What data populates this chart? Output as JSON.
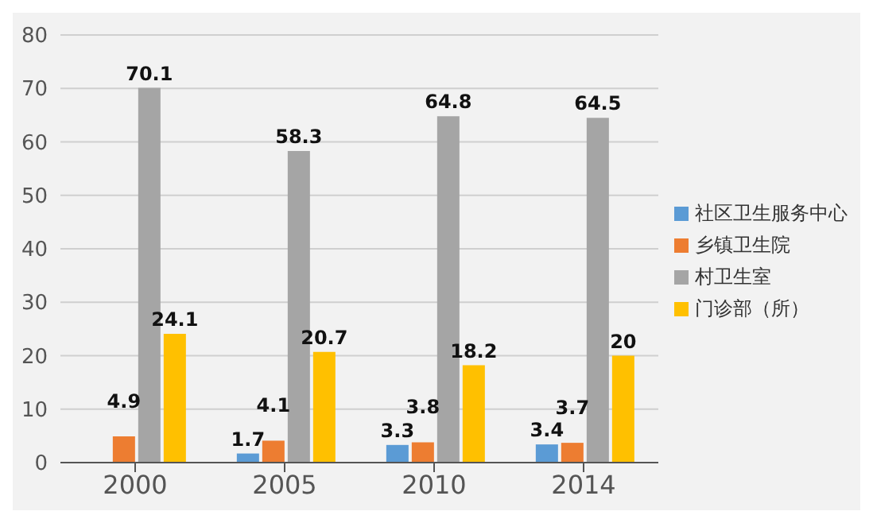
{
  "chart_data": {
    "type": "bar",
    "categories": [
      "2000",
      "2005",
      "2010",
      "2014"
    ],
    "series": [
      {
        "name": "社区卫生服务中心",
        "color": "#5b9bd5",
        "values": [
          null,
          1.7,
          3.3,
          3.4
        ]
      },
      {
        "name": "乡镇卫生院",
        "color": "#ed7d31",
        "values": [
          4.9,
          4.1,
          3.8,
          3.7
        ]
      },
      {
        "name": "村卫生室",
        "color": "#a5a5a5",
        "values": [
          70.1,
          58.3,
          64.8,
          64.5
        ]
      },
      {
        "name": "门诊部（所）",
        "color": "#ffc000",
        "values": [
          24.1,
          20.7,
          18.2,
          20
        ]
      }
    ],
    "ylim": [
      0,
      80
    ],
    "yticks": [
      0,
      10,
      20,
      30,
      40,
      50,
      60,
      70,
      80
    ],
    "grid": "y",
    "legend": "right",
    "data_labels": true
  }
}
